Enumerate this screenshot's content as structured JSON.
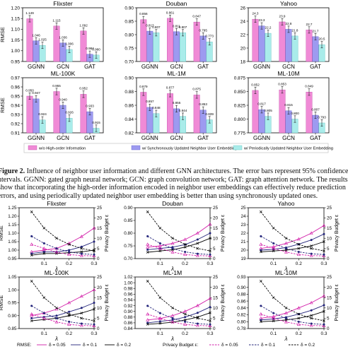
{
  "caption": {
    "label": "Figure 2.",
    "lines": [
      "Influence of neighbor user information and different GNN architectures. The error bars represent 95% confidence",
      "ntervals. GGNN: gated graph neural network; GCN: graph convolution network; GAT: graph attention network. The results",
      "show that incorporating the high-order information encoded in neighbor user embeddings can effectively reduce prediction",
      "errors, and using periodically updated neighbor user embedding is better than using synchronously updated ones."
    ]
  },
  "colors": {
    "pink": "#f08ad6",
    "purple": "#9d9af0",
    "cyan": "#a9ecea",
    "magenta": "#d21ca8",
    "navy": "#22237a",
    "black": "#000000"
  },
  "bar_legend": [
    "w/o High-order Information",
    "w/ Synchronously Updated Neighbor User Embedding",
    "w/ Periodically Updated Neighbor User Embedding"
  ],
  "line_legend": {
    "rmse_label": "RMSE:",
    "budget_label": "Privacy Budget ε:",
    "entries": [
      "δ = 0.05",
      "δ = 0.1",
      "δ = 0.2"
    ]
  },
  "chart_data": [
    {
      "type": "bar",
      "title": "Flixster",
      "ylabel": "RMSE",
      "ylim": [
        0.95,
        1.2
      ],
      "yticks": [
        "0.95",
        "1.00",
        "1.05",
        "1.10",
        "1.15",
        "1.20"
      ],
      "categories": [
        "GGNN",
        "GCN",
        "GAT"
      ],
      "series": [
        {
          "name": "w/o High-order Information",
          "values": [
            1.149,
            1.115,
            1.092
          ],
          "labels": [
            "1.149",
            "1.115",
            "1.092"
          ]
        },
        {
          "name": "w/ Synchronously Updated Neighbor User Embedding",
          "values": [
            1.046,
            1.036,
            0.984
          ],
          "labels": [
            "1.046",
            "1.036",
            "0.984"
          ]
        },
        {
          "name": "w/ Periodically Updated Neighbor User Embedding",
          "values": [
            1.025,
            1.006,
            0.98
          ],
          "labels": [
            "1.025",
            "1.006",
            "0.980"
          ]
        }
      ]
    },
    {
      "type": "bar",
      "title": "Douban",
      "ylabel": "",
      "ylim": [
        0.7,
        0.9
      ],
      "yticks": [
        "0.70",
        "0.75",
        "0.80",
        "0.85",
        "0.90"
      ],
      "categories": [
        "GGNN",
        "GCN",
        "GAT"
      ],
      "series": [
        {
          "name": "w/o High-order Information",
          "values": [
            0.856,
            0.861,
            0.847
          ],
          "labels": [
            "0.856",
            "0.861",
            "0.847"
          ]
        },
        {
          "name": "w/ Synchronously Updated Neighbor User Embedding",
          "values": [
            0.813,
            0.811,
            0.795
          ],
          "labels": [
            "0.813",
            "0.811",
            "0.795"
          ]
        },
        {
          "name": "w/ Periodically Updated Neighbor User Embedding",
          "values": [
            0.807,
            0.807,
            0.773
          ],
          "labels": [
            "0.807",
            "0.807",
            "0.773"
          ]
        }
      ]
    },
    {
      "type": "bar",
      "title": "Yahoo",
      "ylabel": "",
      "ylim": [
        18,
        26
      ],
      "yticks": [
        "18",
        "20",
        "22",
        "24",
        "26"
      ],
      "categories": [
        "GGNN",
        "GCN",
        "GAT"
      ],
      "series": [
        {
          "name": "w/o High-order Information",
          "values": [
            24.3,
            23.9,
            22.7
          ],
          "labels": [
            "24.3",
            "23.9",
            "22.7"
          ]
        },
        {
          "name": "w/ Synchronously Updated Neighbor User Embedding",
          "values": [
            23.3,
            22.8,
            21.7
          ],
          "labels": [
            "23.3",
            "22.8",
            "21.7"
          ]
        },
        {
          "name": "w/ Periodically Updated Neighbor User Embedding",
          "values": [
            22.2,
            21.8,
            20.5
          ],
          "labels": [
            "22.2",
            "21.8",
            "20.5"
          ]
        }
      ]
    },
    {
      "type": "bar",
      "title": "ML-100K",
      "ylabel": "RMSE",
      "ylim": [
        0.91,
        0.97
      ],
      "yticks": [
        "0.91",
        "0.92",
        "0.93",
        "0.94",
        "0.95",
        "0.96",
        "0.97"
      ],
      "categories": [
        "GGNN",
        "GCN",
        "GAT"
      ],
      "series": [
        {
          "name": "w/o High-order Information",
          "values": [
            0.95,
            0.955,
            0.952
          ],
          "labels": [
            "0.950",
            "0.955",
            "0.952"
          ]
        },
        {
          "name": "w/ Synchronously Updated Neighbor User Embedding",
          "values": [
            0.947,
            0.94,
            0.933
          ],
          "labels": [
            "0.947",
            "0.940",
            "0.933"
          ]
        },
        {
          "name": "w/ Periodically Updated Neighbor User Embedding",
          "values": [
            0.924,
            0.926,
            0.915
          ],
          "labels": [
            "0.924",
            "0.926",
            "0.915"
          ]
        }
      ]
    },
    {
      "type": "bar",
      "title": "ML-1M",
      "ylabel": "",
      "ylim": [
        0.82,
        0.9
      ],
      "yticks": [
        "0.82",
        "0.84",
        "0.86",
        "0.88",
        "0.90"
      ],
      "categories": [
        "GGNN",
        "GCN",
        "GAT"
      ],
      "series": [
        {
          "name": "w/o High-order Information",
          "values": [
            0.879,
            0.877,
            0.875
          ],
          "labels": [
            "0.879",
            "0.877",
            "0.875"
          ]
        },
        {
          "name": "w/ Synchronously Updated Neighbor User Embedding",
          "values": [
            0.857,
            0.855,
            0.853
          ],
          "labels": [
            "0.857",
            "0.855",
            "0.853"
          ]
        },
        {
          "name": "w/ Periodically Updated Neighbor User Embedding",
          "values": [
            0.848,
            0.844,
            0.839
          ],
          "labels": [
            "0.848",
            "0.844",
            "0.839"
          ]
        }
      ]
    },
    {
      "type": "bar",
      "title": "ML-10M",
      "ylabel": "",
      "ylim": [
        0.775,
        0.875
      ],
      "yticks": [
        "0.775",
        "0.800",
        "0.825",
        "0.850",
        "0.875"
      ],
      "categories": [
        "GGNN",
        "GCN",
        "GAT"
      ],
      "series": [
        {
          "name": "w/o High-order Information",
          "values": [
            0.852,
            0.853,
            0.849
          ],
          "labels": [
            "0.852",
            "0.853",
            "0.849"
          ]
        },
        {
          "name": "w/ Synchronously Updated Neighbor User Embedding",
          "values": [
            0.817,
            0.815,
            0.807
          ],
          "labels": [
            "0.817",
            "0.815",
            "0.807"
          ]
        },
        {
          "name": "w/ Periodically Updated Neighbor User Embedding",
          "values": [
            0.805,
            0.8,
            0.793
          ],
          "labels": [
            "0.805",
            "0.800",
            "0.793"
          ]
        }
      ]
    },
    {
      "type": "line",
      "title": "Flixster",
      "ylabel": "RMSE",
      "y2label": "Privacy Budget ε",
      "xlabel": "λ",
      "x": [
        0.05,
        0.1,
        0.15,
        0.2,
        0.25,
        0.3
      ],
      "ylim": [
        0.95,
        1.25
      ],
      "yticks": [
        "0.95",
        "1.00",
        "1.05",
        "1.10",
        "1.15",
        "1.20",
        "1.25"
      ],
      "y2lim": [
        0,
        25
      ],
      "y2ticks": [
        "0",
        "5",
        "10",
        "15",
        "20",
        "25"
      ],
      "xticks": [
        "0.1",
        "0.2",
        "0.3"
      ],
      "rmse": [
        [
          0.99,
          1.0,
          1.01,
          1.04,
          1.08,
          1.13
        ],
        [
          0.98,
          0.99,
          0.99,
          1.0,
          1.02,
          1.05
        ],
        [
          0.97,
          0.98,
          0.98,
          0.985,
          0.99,
          1.0
        ]
      ],
      "budget": [
        [
          7.0,
          5.0,
          3.2,
          2.0,
          1.5,
          1.3
        ],
        [
          11.0,
          7.5,
          5.0,
          3.3,
          2.4,
          2.0
        ],
        [
          23.0,
          15.0,
          10.0,
          7.0,
          5.0,
          3.8
        ]
      ]
    },
    {
      "type": "line",
      "title": "Douban",
      "ylabel": "",
      "y2label": "Privacy Budget ε",
      "xlabel": "λ",
      "x": [
        0.05,
        0.1,
        0.15,
        0.2,
        0.25,
        0.3
      ],
      "ylim": [
        0.7,
        0.9
      ],
      "yticks": [
        "0.70",
        "0.75",
        "0.80",
        "0.85",
        "0.90"
      ],
      "y2lim": [
        0,
        25
      ],
      "y2ticks": [
        "0",
        "5",
        "10",
        "15",
        "20",
        "25"
      ],
      "xticks": [
        "0.1",
        "0.2",
        "0.3"
      ],
      "rmse": [
        [
          0.745,
          0.75,
          0.76,
          0.775,
          0.8,
          0.835
        ],
        [
          0.735,
          0.74,
          0.745,
          0.755,
          0.775,
          0.8
        ],
        [
          0.725,
          0.73,
          0.735,
          0.745,
          0.76,
          0.78
        ]
      ],
      "budget": [
        [
          7.0,
          5.0,
          3.2,
          2.0,
          1.5,
          1.3
        ],
        [
          11.0,
          7.5,
          5.0,
          3.3,
          2.4,
          2.0
        ],
        [
          23.0,
          15.0,
          10.0,
          7.0,
          5.0,
          3.8
        ]
      ]
    },
    {
      "type": "line",
      "title": "Yahoo",
      "ylabel": "",
      "y2label": "Privacy Budget ε",
      "xlabel": "λ",
      "x": [
        0.05,
        0.1,
        0.15,
        0.2,
        0.25,
        0.3
      ],
      "ylim": [
        19,
        25
      ],
      "yticks": [
        "19",
        "20",
        "21",
        "22",
        "23",
        "24",
        "25"
      ],
      "y2lim": [
        0,
        25
      ],
      "y2ticks": [
        "0",
        "5",
        "10",
        "15",
        "20",
        "25"
      ],
      "xticks": [
        "0.1",
        "0.2",
        "0.3"
      ],
      "rmse": [
        [
          20.2,
          20.4,
          20.8,
          21.3,
          22.0,
          22.9
        ],
        [
          20.0,
          20.1,
          20.3,
          20.7,
          21.2,
          21.9
        ],
        [
          19.8,
          19.9,
          20.0,
          20.2,
          20.5,
          21.0
        ]
      ],
      "budget": [
        [
          7.0,
          5.0,
          3.2,
          2.0,
          1.5,
          1.3
        ],
        [
          11.0,
          7.5,
          5.0,
          3.3,
          2.4,
          2.0
        ],
        [
          23.0,
          15.0,
          10.0,
          7.0,
          5.0,
          3.8
        ]
      ]
    },
    {
      "type": "line",
      "title": "ML-100K",
      "ylabel": "RMSE",
      "y2label": "Privacy Budget ε",
      "xlabel": "λ",
      "x": [
        0.05,
        0.1,
        0.15,
        0.2,
        0.25,
        0.3
      ],
      "ylim": [
        0.85,
        1.05
      ],
      "yticks": [
        "0.85",
        "0.90",
        "0.95",
        "1.00",
        "1.05"
      ],
      "y2lim": [
        0,
        25
      ],
      "y2ticks": [
        "0",
        "5",
        "10",
        "15",
        "20",
        "25"
      ],
      "xticks": [
        "0.1",
        "0.2",
        "0.3"
      ],
      "rmse": [
        [
          0.9,
          0.91,
          0.925,
          0.95,
          0.975,
          1.0
        ],
        [
          0.89,
          0.895,
          0.9,
          0.915,
          0.93,
          0.95
        ],
        [
          0.88,
          0.885,
          0.89,
          0.9,
          0.91,
          0.925
        ]
      ],
      "budget": [
        [
          7.0,
          5.0,
          3.2,
          2.0,
          1.5,
          1.3
        ],
        [
          11.0,
          7.5,
          5.0,
          3.3,
          2.4,
          2.0
        ],
        [
          23.0,
          15.0,
          10.0,
          7.0,
          5.0,
          3.8
        ]
      ]
    },
    {
      "type": "line",
      "title": "ML-1M",
      "ylabel": "",
      "y2label": "Privacy Budget ε",
      "xlabel": "λ",
      "x": [
        0.05,
        0.1,
        0.15,
        0.2,
        0.25,
        0.3
      ],
      "ylim": [
        0.84,
        1.02
      ],
      "yticks": [
        "0.84",
        "0.86",
        "0.88",
        "0.90",
        "0.92",
        "0.94",
        "0.96",
        "0.98",
        "1.00",
        "1.02"
      ],
      "y2lim": [
        0,
        25
      ],
      "y2ticks": [
        "0",
        "5",
        "10",
        "15",
        "20",
        "25"
      ],
      "xticks": [
        "0.1",
        "0.2",
        "0.3"
      ],
      "rmse": [
        [
          0.87,
          0.875,
          0.885,
          0.9,
          0.92,
          0.945
        ],
        [
          0.86,
          0.865,
          0.87,
          0.88,
          0.895,
          0.915
        ],
        [
          0.855,
          0.858,
          0.862,
          0.87,
          0.88,
          0.895
        ]
      ],
      "budget": [
        [
          7.0,
          5.0,
          3.2,
          2.0,
          1.5,
          1.3
        ],
        [
          11.0,
          7.5,
          5.0,
          3.3,
          2.4,
          2.0
        ],
        [
          23.0,
          15.0,
          10.0,
          7.0,
          5.0,
          3.8
        ]
      ]
    },
    {
      "type": "line",
      "title": "ML-10M",
      "ylabel": "",
      "y2label": "Privacy Budget ε",
      "xlabel": "λ",
      "x": [
        0.05,
        0.1,
        0.15,
        0.2,
        0.25,
        0.3
      ],
      "ylim": [
        0.78,
        0.93
      ],
      "yticks": [
        "0.78",
        "0.80",
        "0.82",
        "0.84",
        "0.86",
        "0.88",
        "0.90",
        "0.93"
      ],
      "y2lim": [
        0,
        25
      ],
      "y2ticks": [
        "0",
        "5",
        "10",
        "15",
        "20",
        "25"
      ],
      "xticks": [
        "0.1",
        "0.2",
        "0.3"
      ],
      "rmse": [
        [
          0.81,
          0.815,
          0.825,
          0.84,
          0.855,
          0.875
        ],
        [
          0.805,
          0.808,
          0.813,
          0.822,
          0.833,
          0.848
        ],
        [
          0.8,
          0.802,
          0.805,
          0.81,
          0.818,
          0.83
        ]
      ],
      "budget": [
        [
          7.0,
          5.0,
          3.2,
          2.0,
          1.5,
          1.3
        ],
        [
          11.0,
          7.5,
          5.0,
          3.3,
          2.4,
          2.0
        ],
        [
          23.0,
          15.0,
          10.0,
          7.0,
          5.0,
          3.8
        ]
      ]
    }
  ]
}
